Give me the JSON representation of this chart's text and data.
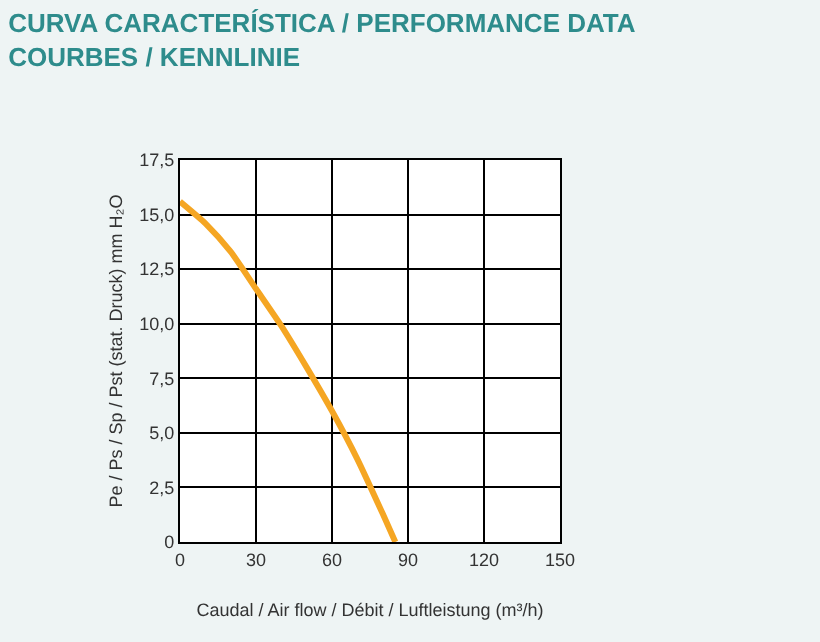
{
  "chart_data": {
    "type": "line",
    "title": "CURVA CARACTERÍSTICA / PERFORMANCE DATA\nCOURBES / KENNLINIE",
    "xlabel": "Caudal / Air flow / Débit / Luftleistung (m³/h)",
    "ylabel": "Pe / Ps / Sp / Pst (stat. Druck) mm H₂O",
    "x": [
      0,
      10,
      20,
      30,
      40,
      50,
      60,
      70,
      80,
      85
    ],
    "series": [
      {
        "color": "#f5a623",
        "values": [
          15.6,
          14.6,
          13.3,
          11.6,
          9.9,
          8.0,
          6.0,
          3.8,
          1.3,
          0
        ]
      }
    ],
    "xlim": [
      0,
      150
    ],
    "xticks": [
      0,
      30,
      60,
      90,
      120,
      150
    ],
    "ylim": [
      0,
      17.5
    ],
    "yticks": [
      0,
      {
        "value": 2.5,
        "label": "2,5"
      },
      {
        "value": 5,
        "label": "5,0"
      },
      {
        "value": 7.5,
        "label": "7,5"
      },
      {
        "value": 10,
        "label": "10,0"
      },
      {
        "value": 12.5,
        "label": "12,5"
      },
      {
        "value": 15,
        "label": "15,0"
      },
      {
        "value": 17.5,
        "label": "17,5"
      }
    ],
    "grid": true,
    "marker": "none",
    "line_style": "solid"
  }
}
